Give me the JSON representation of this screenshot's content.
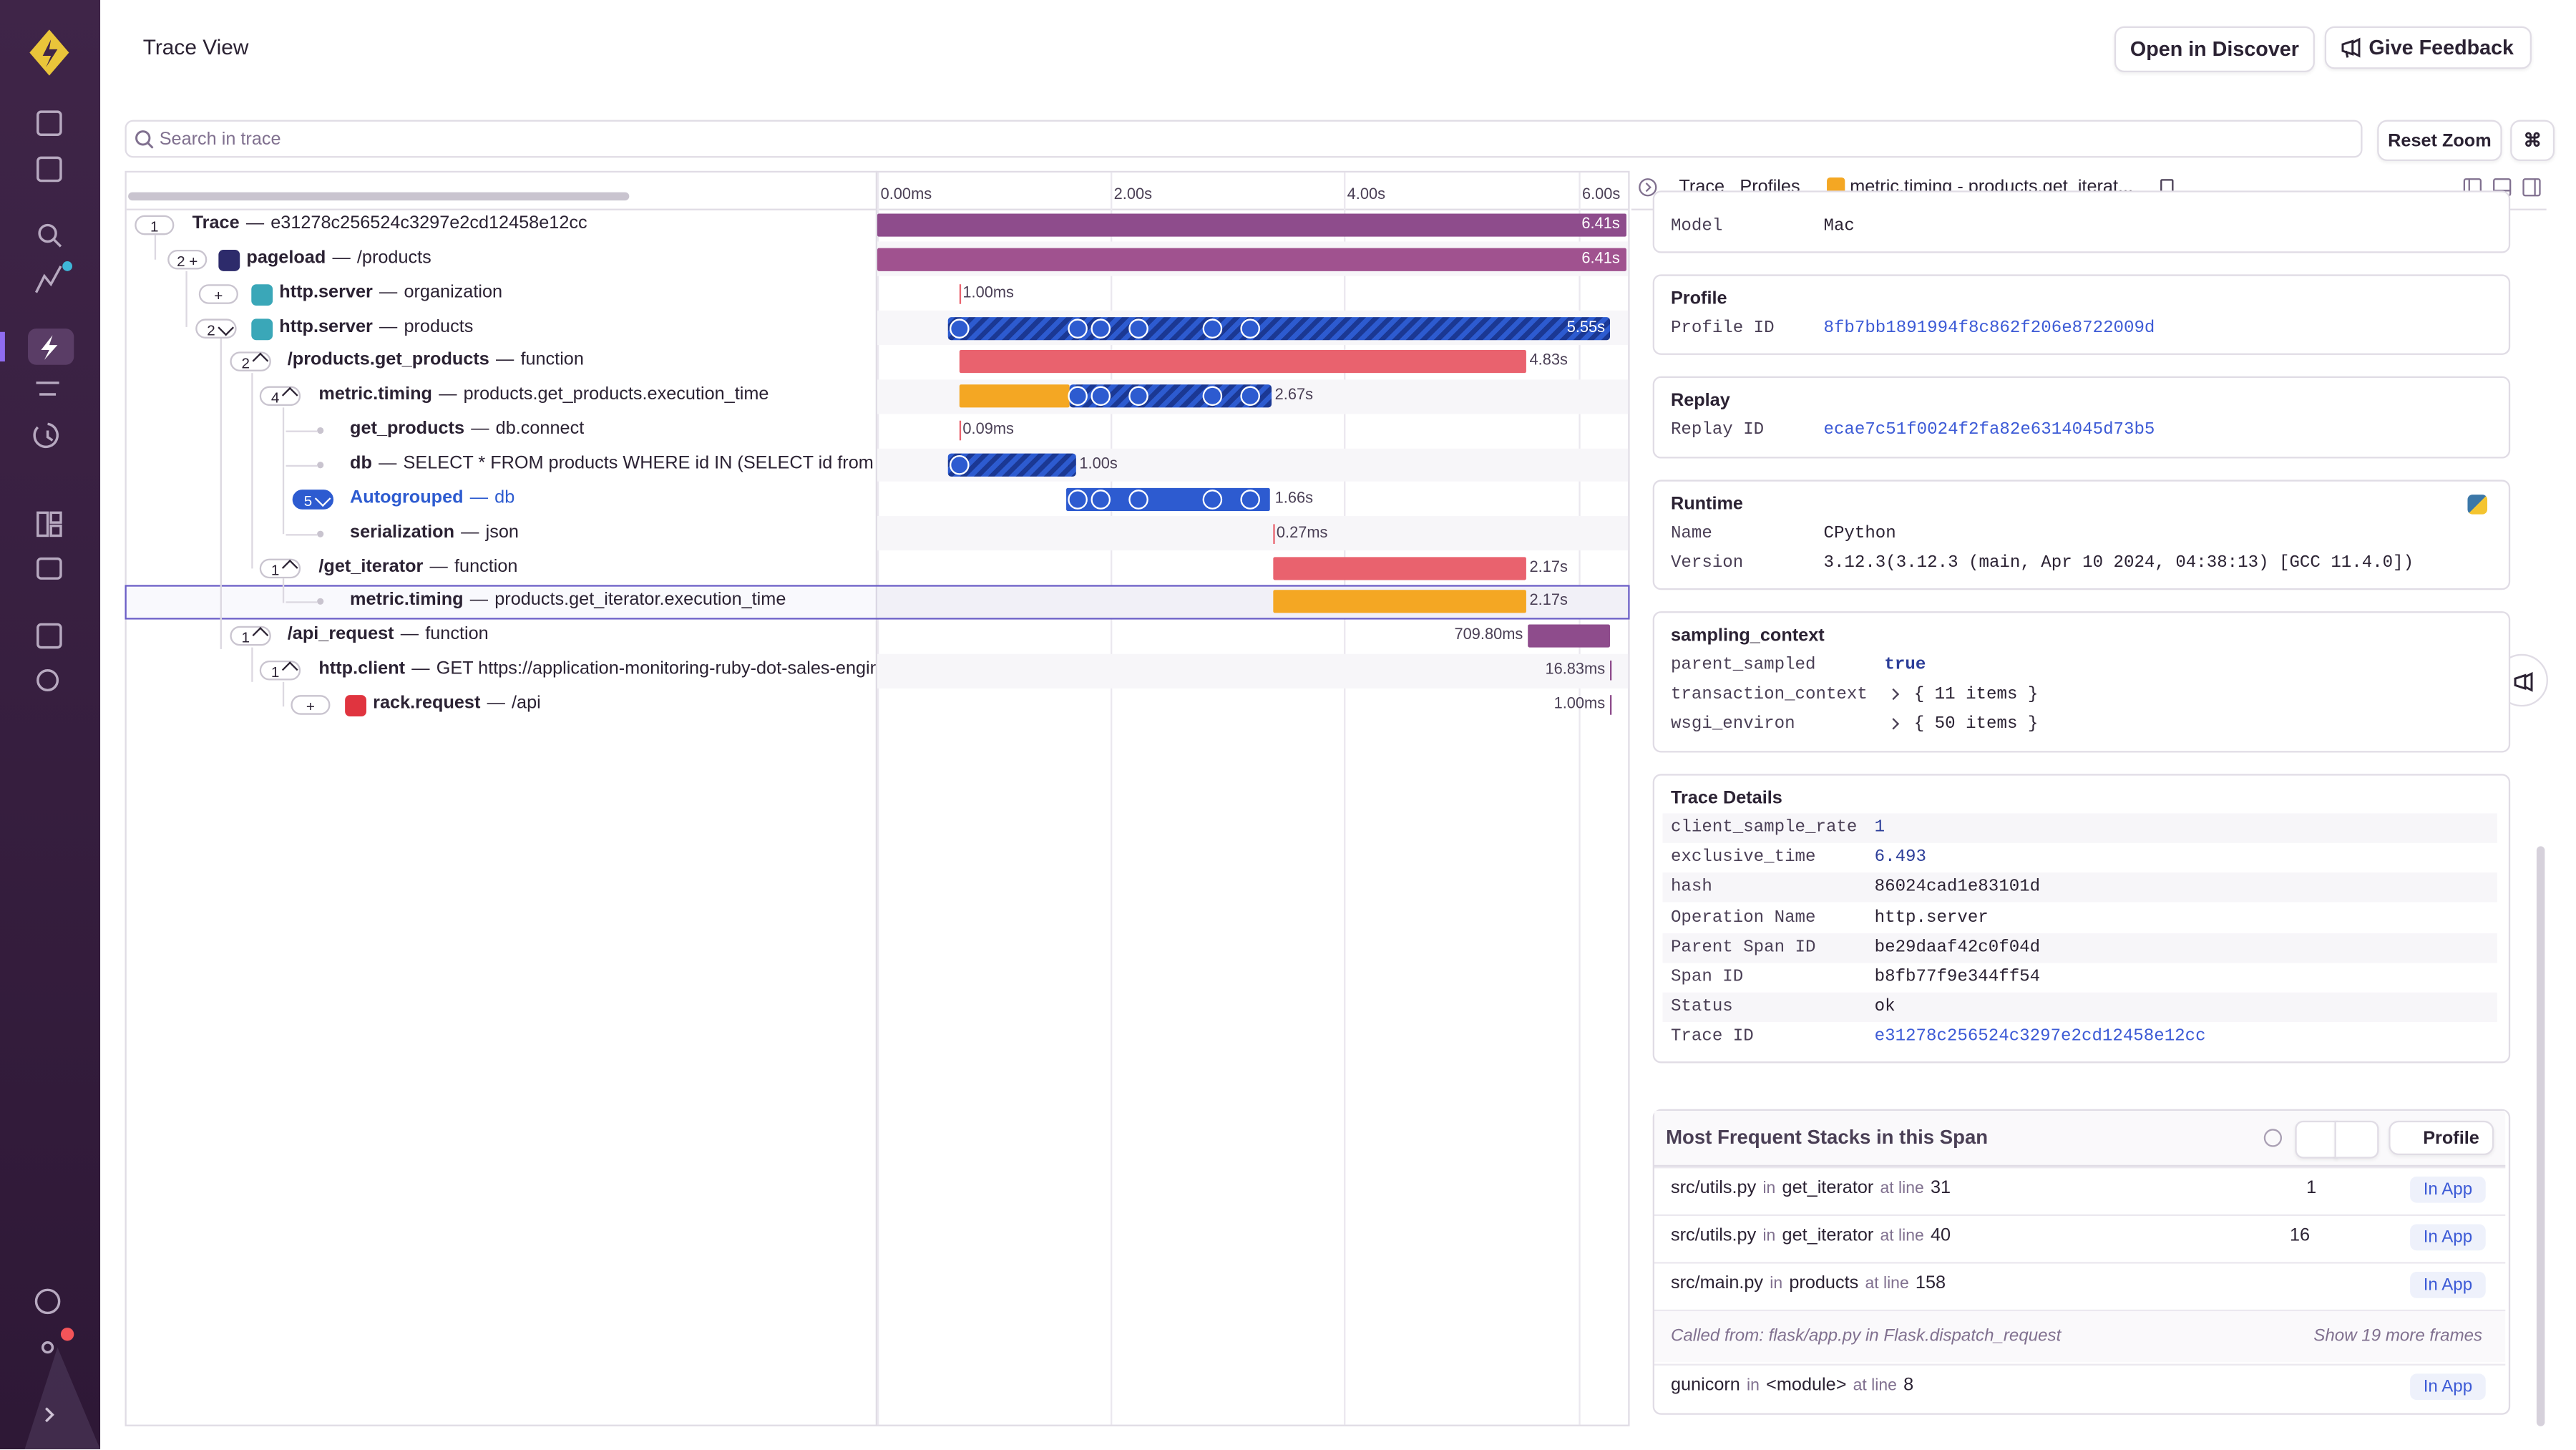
{
  "header": {
    "title": "Trace View",
    "actions": [
      "Open in Discover",
      "Give Feedback"
    ]
  },
  "search": {
    "placeholder": "Search in trace",
    "reset": "Reset Zoom",
    "shortcut": "⌘"
  },
  "timeline": {
    "ticks": [
      "0.00ms",
      "2.00s",
      "4.00s",
      "6.00s"
    ]
  },
  "separator": "—",
  "rows": [
    {
      "badge": "1",
      "op": "Trace",
      "description": "e31278c256524c3297e2cd12458e12cc",
      "duration": "6.41s"
    },
    {
      "badge": "2 +",
      "op": "pageload",
      "description": "/products",
      "duration": "6.41s"
    },
    {
      "badge": "+",
      "op": "http.server",
      "description": "organization",
      "duration": "1.00ms"
    },
    {
      "badge": "2",
      "op": "http.server",
      "description": "products",
      "duration": "5.55s"
    },
    {
      "badge": "2",
      "op": "/products.get_products",
      "description": "function",
      "duration": "4.83s"
    },
    {
      "badge": "4",
      "op": "metric.timing",
      "description": "products.get_products.execution_time",
      "duration": "2.67s"
    },
    {
      "op": "get_products",
      "description": "db.connect",
      "duration": "0.09ms"
    },
    {
      "op": "db",
      "description": "SELECT * FROM products WHERE id IN (SELECT id from products",
      "duration": "1.00s"
    },
    {
      "badge": "5",
      "op": "Autogrouped",
      "description": "db",
      "duration": "1.66s"
    },
    {
      "op": "serialization",
      "description": "json",
      "duration": "0.27ms"
    },
    {
      "badge": "1",
      "op": "/get_iterator",
      "description": "function",
      "duration": "2.17s"
    },
    {
      "op": "metric.timing",
      "description": "products.get_iterator.execution_time",
      "duration": "2.17s"
    },
    {
      "badge": "1",
      "op": "/api_request",
      "description": "function",
      "duration": "709.80ms"
    },
    {
      "badge": "1",
      "op": "http.client",
      "description": "GET https://application-monitoring-ruby-dot-sales-engineering",
      "duration": "16.83ms"
    },
    {
      "badge": "+",
      "op": "rack.request",
      "description": "/api",
      "duration": "1.00ms"
    }
  ],
  "details": {
    "tabs": [
      "Trace",
      "Profiles",
      "metric.timing - products.get_iterat..."
    ],
    "sections": [
      {
        "rows": [
          [
            "Model",
            "Mac"
          ]
        ]
      },
      {
        "title": "Profile",
        "rows": [
          [
            "Profile ID",
            "8fb7bb1891994f8c862f206e8722009d"
          ]
        ]
      },
      {
        "title": "Replay",
        "rows": [
          [
            "Replay ID",
            "ecae7c51f0024f2fa82e6314045d73b5"
          ]
        ]
      },
      {
        "title": "Runtime",
        "rows": [
          [
            "Name",
            "CPython"
          ],
          [
            "Version",
            "3.12.3(3.12.3 (main, Apr 10 2024, 04:38:13) [GCC 11.4.0])"
          ]
        ]
      },
      {
        "title": "sampling_context",
        "rows": [
          [
            "parent_sampled",
            "true"
          ],
          [
            "transaction_context",
            "{ 11 items }"
          ],
          [
            "wsgi_environ",
            "{ 50 items }"
          ]
        ]
      },
      {
        "title": "Trace Details",
        "rows": [
          [
            "client_sample_rate",
            1
          ],
          [
            "exclusive_time",
            6.493
          ],
          [
            "hash",
            "86024cad1e83101d"
          ],
          [
            "Operation Name",
            "http.server"
          ],
          [
            "Parent Span ID",
            "be29daaf42c0f04d"
          ],
          [
            "Span ID",
            "b8fb77f9e344ff54"
          ],
          [
            "Status",
            "ok"
          ],
          [
            "Trace ID",
            "e31278c256524c3297e2cd12458e12cc"
          ]
        ]
      }
    ]
  },
  "stacks": {
    "title": "Most Frequent Stacks in this Span",
    "button": "Profile",
    "frames": [
      {
        "file": "src/utils.py",
        "in": "in",
        "function": "get_iterator",
        "at": "at line",
        "line": 31,
        "count": 1,
        "tag": "In App"
      },
      {
        "file": "src/utils.py",
        "in": "in",
        "function": "get_iterator",
        "at": "at line",
        "line": 40,
        "count": 16,
        "tag": "In App"
      },
      {
        "file": "src/main.py",
        "in": "in",
        "function": "products",
        "at": "at line",
        "line": 158,
        "tag": "In App"
      },
      {
        "file": "gunicorn",
        "in": "in",
        "function": "<module>",
        "at": "at line",
        "line": 8,
        "tag": "In App"
      }
    ],
    "called_from": {
      "text": "Called from: flask/app.py in Flask.dispatch_request",
      "more": "Show 19 more frames"
    }
  }
}
